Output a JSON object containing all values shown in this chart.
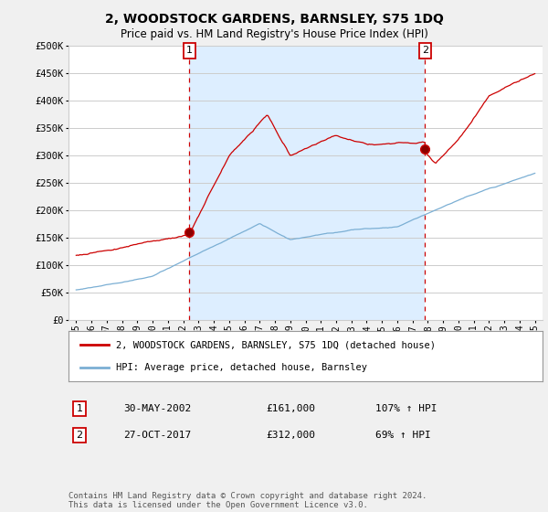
{
  "title": "2, WOODSTOCK GARDENS, BARNSLEY, S75 1DQ",
  "subtitle": "Price paid vs. HM Land Registry's House Price Index (HPI)",
  "legend_label_red": "2, WOODSTOCK GARDENS, BARNSLEY, S75 1DQ (detached house)",
  "legend_label_blue": "HPI: Average price, detached house, Barnsley",
  "annotation1_label": "1",
  "annotation1_date": "30-MAY-2002",
  "annotation1_price": "£161,000",
  "annotation1_hpi": "107% ↑ HPI",
  "annotation2_label": "2",
  "annotation2_date": "27-OCT-2017",
  "annotation2_price": "£312,000",
  "annotation2_hpi": "69% ↑ HPI",
  "footer": "Contains HM Land Registry data © Crown copyright and database right 2024.\nThis data is licensed under the Open Government Licence v3.0.",
  "ylim": [
    0,
    500000
  ],
  "yticks": [
    0,
    50000,
    100000,
    150000,
    200000,
    250000,
    300000,
    350000,
    400000,
    450000,
    500000
  ],
  "x_start_year": 1995,
  "x_end_year": 2025,
  "sale1_year": 2002.41,
  "sale1_price": 161000,
  "sale2_year": 2017.82,
  "sale2_price": 312000,
  "red_color": "#cc0000",
  "blue_color": "#7bafd4",
  "shade_color": "#ddeeff",
  "background_color": "#f0f0f0",
  "plot_bg_color": "#ffffff",
  "grid_color": "#cccccc"
}
